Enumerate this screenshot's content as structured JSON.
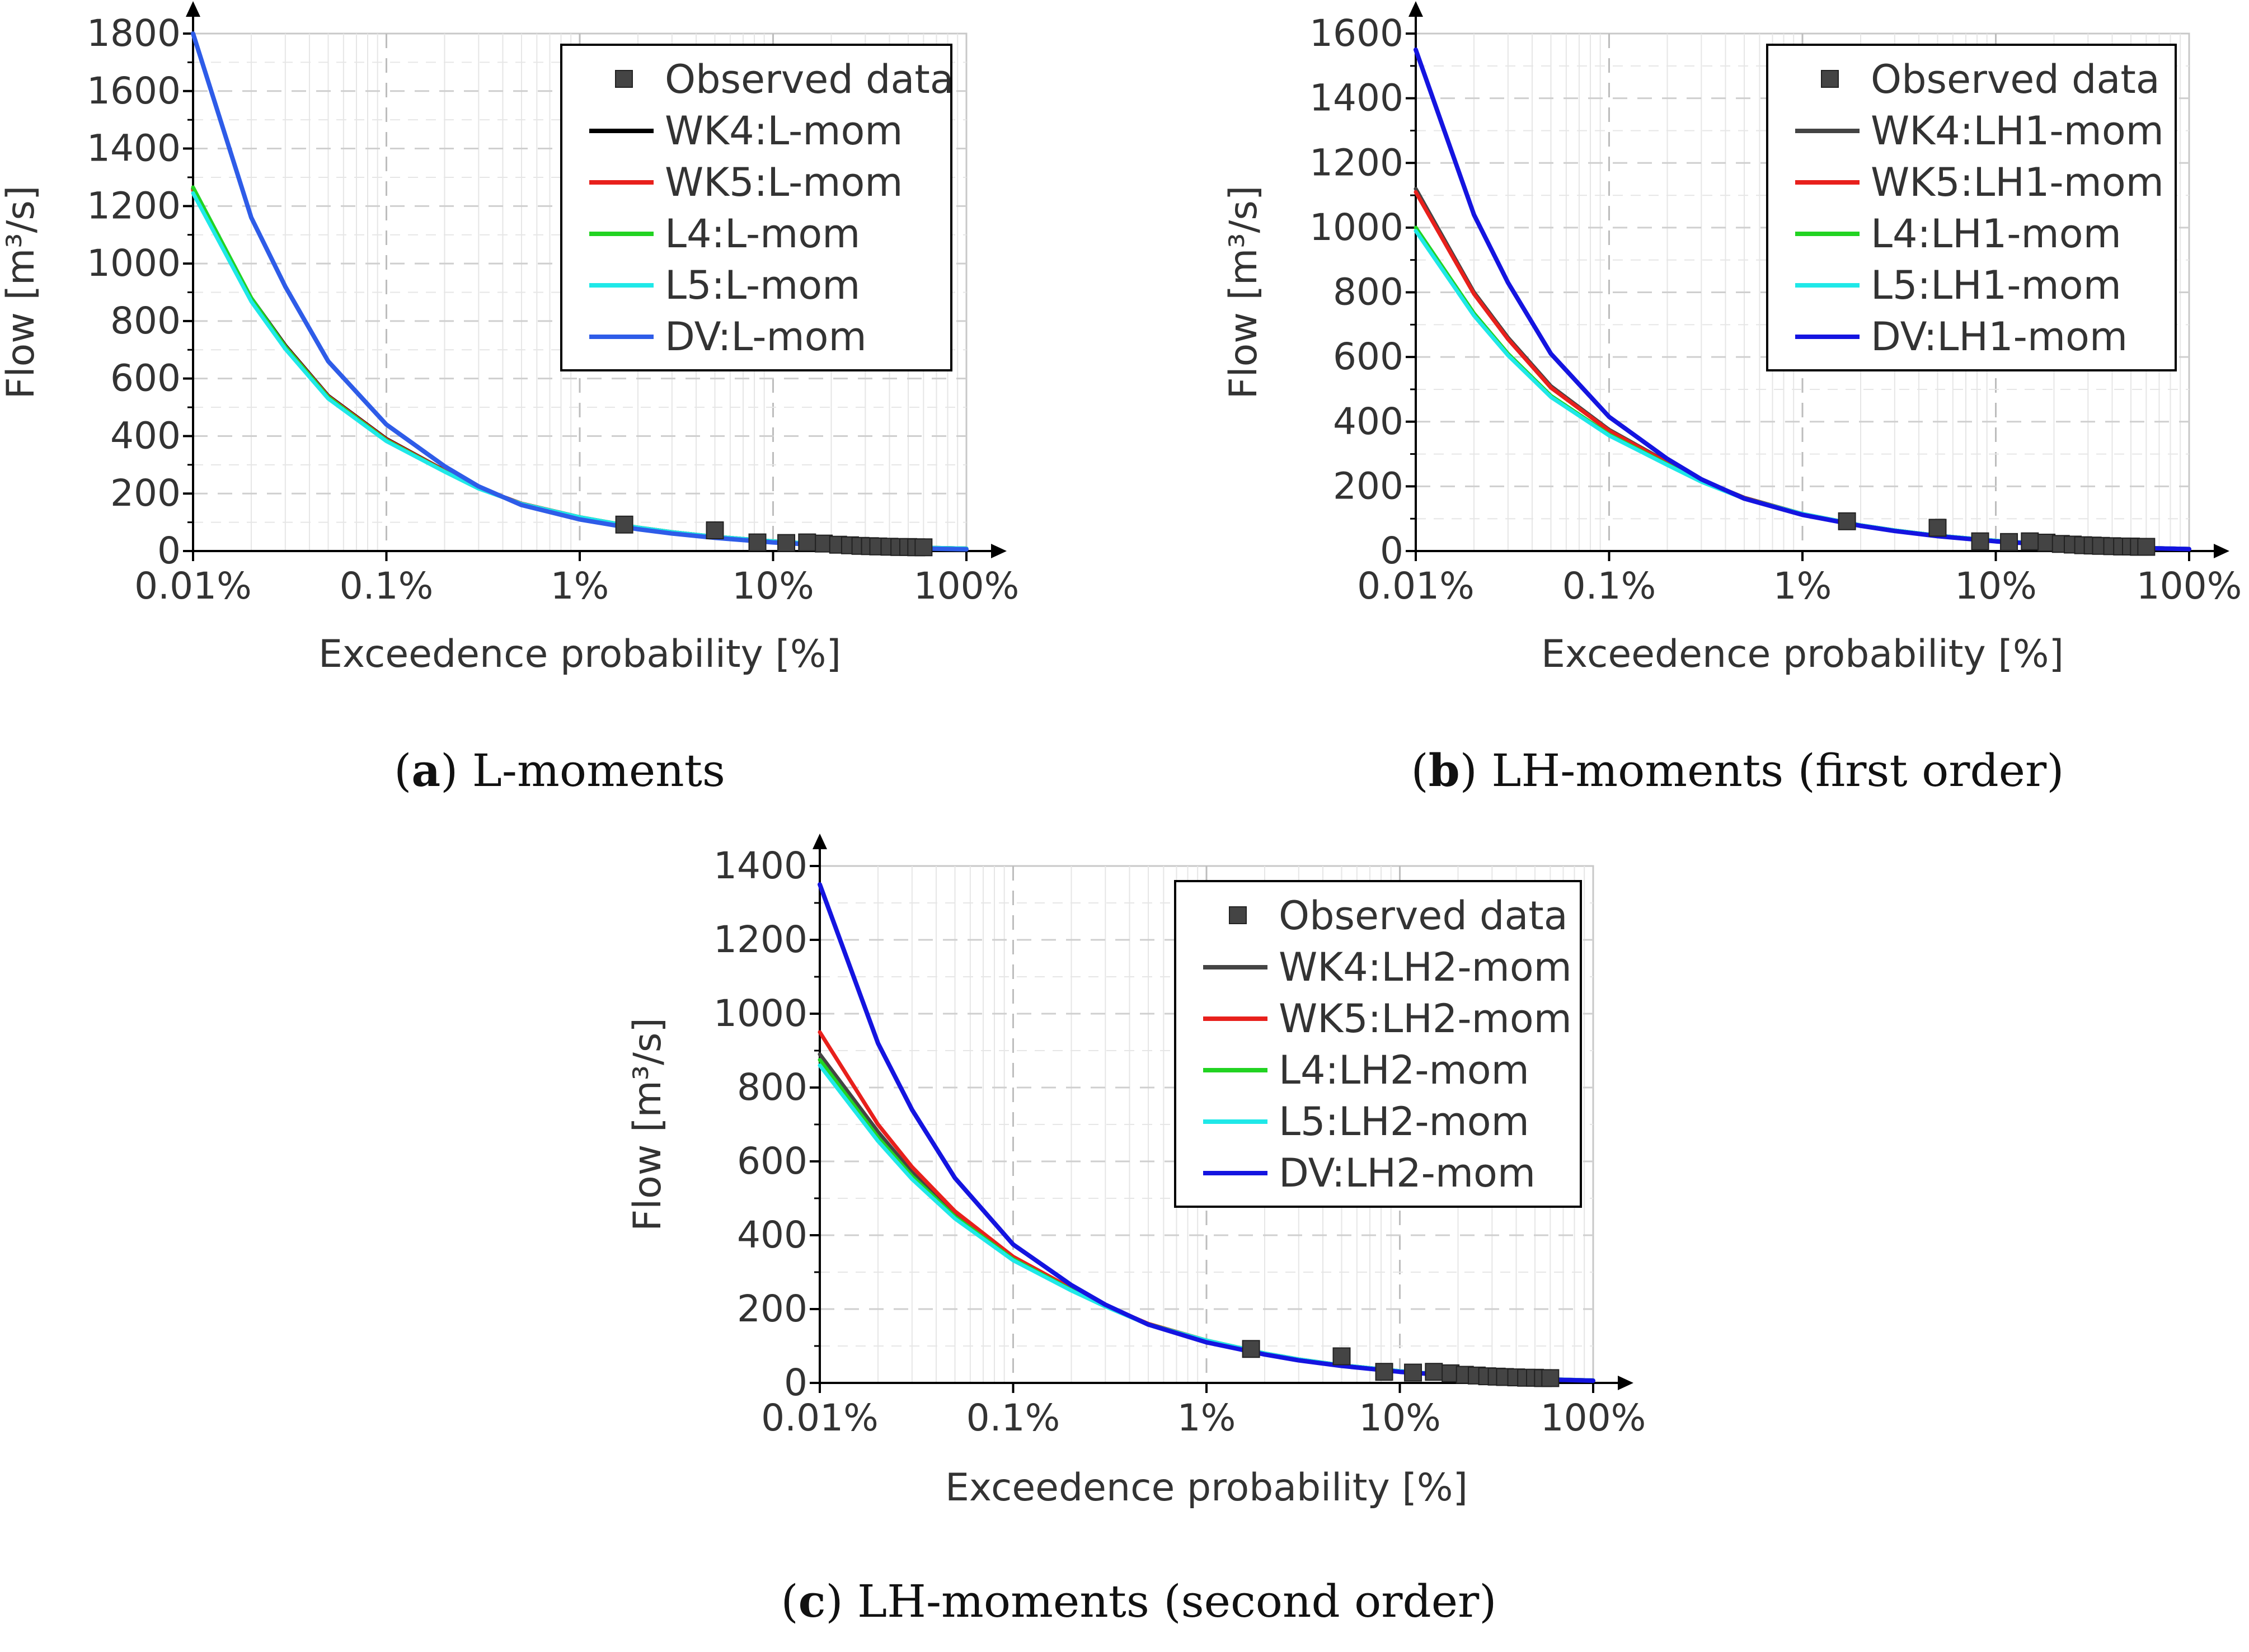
{
  "chart_data": [
    {
      "type": "line",
      "caption": {
        "letter": "a",
        "text": ") L-moments",
        "open": "("
      },
      "xlabel": "Exceedence probability [%]",
      "ylabel": "Flow [m³/s]",
      "xscale": "log",
      "xlim": [
        0.01,
        100
      ],
      "ylim": [
        0,
        1800
      ],
      "x_ticks": [
        0.01,
        0.1,
        1,
        10,
        100
      ],
      "x_tick_labels": [
        "0.01%",
        "0.1%",
        "1%",
        "10%",
        "100%"
      ],
      "y_ticks": [
        0,
        200,
        400,
        600,
        800,
        1000,
        1200,
        1400,
        1600,
        1800
      ],
      "y_tick_labels": [
        "0",
        "200",
        "400",
        "600",
        "800",
        "1000",
        "1200",
        "1400",
        "1600",
        "1800"
      ],
      "grid": true,
      "legend": "top-right",
      "observed": {
        "name": "Observed data",
        "color": "#444444",
        "x": [
          1.7,
          5,
          8.3,
          11.7,
          15,
          18.3,
          21.7,
          25,
          28.3,
          31.7,
          35,
          40,
          45,
          50,
          55,
          60
        ],
        "y": [
          92,
          72,
          30,
          28,
          30,
          26,
          22,
          20,
          18,
          17,
          16,
          15,
          14,
          14,
          13,
          13
        ]
      },
      "x": [
        0.01,
        0.02,
        0.03,
        0.05,
        0.1,
        0.2,
        0.3,
        0.5,
        1,
        2,
        3,
        5,
        10,
        20,
        30,
        50,
        100
      ],
      "series": [
        {
          "name": "WK4:L-mom",
          "color": "#000000",
          "values": [
            1260,
            880,
            715,
            540,
            390,
            280,
            220,
            165,
            118,
            82,
            66,
            50,
            34,
            22,
            18,
            13,
            9
          ]
        },
        {
          "name": "WK5:L-mom",
          "color": "#e8201c",
          "values": [
            1255,
            878,
            712,
            538,
            388,
            279,
            219,
            165,
            118,
            82,
            66,
            50,
            34,
            22,
            18,
            13,
            9
          ]
        },
        {
          "name": "L4:L-mom",
          "color": "#22d322",
          "values": [
            1265,
            880,
            710,
            535,
            385,
            277,
            218,
            164,
            118,
            82,
            66,
            50,
            34,
            22,
            18,
            13,
            9
          ]
        },
        {
          "name": "L5:L-mom",
          "color": "#1fe8e8",
          "values": [
            1245,
            868,
            703,
            530,
            382,
            276,
            217,
            164,
            118,
            82,
            66,
            50,
            34,
            22,
            18,
            13,
            9
          ]
        },
        {
          "name": "DV:L-mom",
          "color": "#2e5ce8",
          "values": [
            1800,
            1160,
            920,
            660,
            440,
            295,
            225,
            160,
            110,
            76,
            61,
            46,
            30,
            19,
            15,
            10,
            6
          ]
        }
      ]
    },
    {
      "type": "line",
      "caption": {
        "letter": "b",
        "text": ") LH-moments (first order)",
        "open": "("
      },
      "xlabel": "Exceedence probability [%]",
      "ylabel": "Flow [m³/s]",
      "xscale": "log",
      "xlim": [
        0.01,
        100
      ],
      "ylim": [
        0,
        1600
      ],
      "x_ticks": [
        0.01,
        0.1,
        1,
        10,
        100
      ],
      "x_tick_labels": [
        "0.01%",
        "0.1%",
        "1%",
        "10%",
        "100%"
      ],
      "y_ticks": [
        0,
        200,
        400,
        600,
        800,
        1000,
        1200,
        1400,
        1600
      ],
      "y_tick_labels": [
        "0",
        "200",
        "400",
        "600",
        "800",
        "1000",
        "1200",
        "1400",
        "1600"
      ],
      "grid": true,
      "legend": "top-right",
      "observed": {
        "name": "Observed data",
        "color": "#444444",
        "x": [
          1.7,
          5,
          8.3,
          11.7,
          15,
          18.3,
          21.7,
          25,
          28.3,
          31.7,
          35,
          40,
          45,
          50,
          55,
          60
        ],
        "y": [
          92,
          72,
          30,
          28,
          30,
          26,
          22,
          20,
          18,
          17,
          16,
          15,
          14,
          14,
          13,
          13
        ]
      },
      "x": [
        0.01,
        0.02,
        0.03,
        0.05,
        0.1,
        0.2,
        0.3,
        0.5,
        1,
        2,
        3,
        5,
        10,
        20,
        30,
        50,
        100
      ],
      "series": [
        {
          "name": "WK4:LH1-mom",
          "color": "#444444",
          "values": [
            1120,
            800,
            660,
            510,
            375,
            275,
            220,
            165,
            115,
            80,
            64,
            48,
            32,
            20,
            16,
            11,
            7
          ]
        },
        {
          "name": "WK5:LH1-mom",
          "color": "#e8201c",
          "values": [
            1110,
            795,
            655,
            505,
            372,
            273,
            218,
            164,
            115,
            80,
            64,
            48,
            32,
            20,
            16,
            11,
            7
          ]
        },
        {
          "name": "L4:LH1-mom",
          "color": "#22d322",
          "values": [
            1000,
            735,
            610,
            480,
            360,
            268,
            215,
            163,
            115,
            80,
            64,
            48,
            32,
            20,
            16,
            11,
            7
          ]
        },
        {
          "name": "L5:LH1-mom",
          "color": "#1fe8e8",
          "values": [
            990,
            728,
            605,
            476,
            357,
            266,
            214,
            162,
            115,
            80,
            64,
            48,
            32,
            20,
            16,
            11,
            7
          ]
        },
        {
          "name": "DV:LH1-mom",
          "color": "#1414e0",
          "values": [
            1550,
            1040,
            830,
            610,
            415,
            285,
            222,
            162,
            112,
            78,
            62,
            46,
            30,
            19,
            15,
            10,
            6
          ]
        }
      ]
    },
    {
      "type": "line",
      "caption": {
        "letter": "c",
        "text": ") LH-moments (second order)",
        "open": "("
      },
      "xlabel": "Exceedence probability [%]",
      "ylabel": "Flow [m³/s]",
      "xscale": "log",
      "xlim": [
        0.01,
        100
      ],
      "ylim": [
        0,
        1400
      ],
      "x_ticks": [
        0.01,
        0.1,
        1,
        10,
        100
      ],
      "x_tick_labels": [
        "0.01%",
        "0.1%",
        "1%",
        "10%",
        "100%"
      ],
      "y_ticks": [
        0,
        200,
        400,
        600,
        800,
        1000,
        1200,
        1400
      ],
      "y_tick_labels": [
        "0",
        "200",
        "400",
        "600",
        "800",
        "1000",
        "1200",
        "1400"
      ],
      "grid": true,
      "legend": "top-right",
      "observed": {
        "name": "Observed data",
        "color": "#444444",
        "x": [
          1.7,
          5,
          8.3,
          11.7,
          15,
          18.3,
          21.7,
          25,
          28.3,
          31.7,
          35,
          40,
          45,
          50,
          55,
          60
        ],
        "y": [
          92,
          72,
          30,
          28,
          30,
          26,
          22,
          20,
          18,
          17,
          16,
          15,
          14,
          14,
          13,
          13
        ]
      },
      "x": [
        0.01,
        0.02,
        0.03,
        0.05,
        0.1,
        0.2,
        0.3,
        0.5,
        1,
        2,
        3,
        5,
        10,
        20,
        30,
        50,
        100
      ],
      "series": [
        {
          "name": "WK4:LH2-mom",
          "color": "#444444",
          "values": [
            890,
            680,
            570,
            460,
            340,
            255,
            210,
            160,
            115,
            80,
            64,
            48,
            32,
            20,
            16,
            11,
            7
          ]
        },
        {
          "name": "WK5:LH2-mom",
          "color": "#e8201c",
          "values": [
            950,
            700,
            585,
            465,
            342,
            256,
            210,
            160,
            115,
            80,
            64,
            48,
            32,
            20,
            16,
            11,
            7
          ]
        },
        {
          "name": "L4:LH2-mom",
          "color": "#22d322",
          "values": [
            875,
            665,
            560,
            450,
            335,
            252,
            208,
            159,
            115,
            80,
            64,
            48,
            32,
            20,
            16,
            11,
            7
          ]
        },
        {
          "name": "L5:LH2-mom",
          "color": "#1fe8e8",
          "values": [
            860,
            655,
            552,
            445,
            332,
            250,
            207,
            158,
            115,
            80,
            64,
            48,
            32,
            20,
            16,
            11,
            7
          ]
        },
        {
          "name": "DV:LH2-mom",
          "color": "#1414e0",
          "values": [
            1350,
            920,
            740,
            555,
            375,
            265,
            212,
            158,
            110,
            77,
            61,
            46,
            30,
            19,
            15,
            10,
            6
          ]
        }
      ]
    }
  ]
}
